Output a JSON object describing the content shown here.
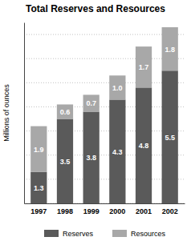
{
  "chart_data": {
    "type": "bar",
    "stacked": true,
    "title": "Total Reserves and Resources",
    "y_label": "Millions of ounces",
    "categories": [
      "1997",
      "1998",
      "1999",
      "2000",
      "2001",
      "2002"
    ],
    "series": [
      {
        "name": "Reserves",
        "color": "#5a5a5a",
        "values": [
          1.3,
          3.5,
          3.8,
          4.3,
          4.8,
          5.5
        ],
        "value_labels": [
          "1.3",
          "3.5",
          "3.8",
          "4.3",
          "4.8",
          "5.5"
        ]
      },
      {
        "name": "Resources",
        "color": "#a8a8a8",
        "values": [
          1.9,
          0.6,
          0.7,
          1.0,
          1.7,
          1.8
        ],
        "value_labels": [
          "1.9",
          "0.6",
          "0.7",
          "1.0",
          "1.7",
          "1.8"
        ]
      }
    ],
    "ylim": [
      0,
      7.5
    ],
    "yticks": [
      0,
      1,
      2,
      3,
      4,
      5,
      6,
      7
    ],
    "grid": true,
    "data_labels": true,
    "tick_labels": "x",
    "legend": "bottom"
  }
}
